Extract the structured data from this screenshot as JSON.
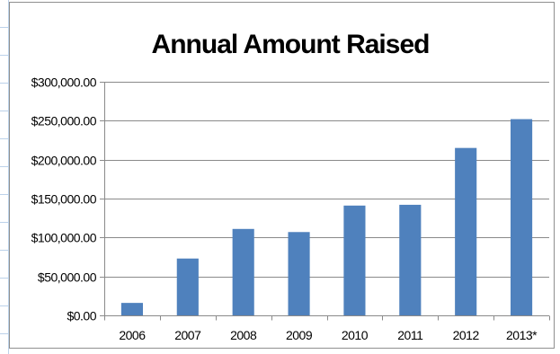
{
  "chart_data": {
    "type": "bar",
    "title": "Annual Amount Raised",
    "xlabel": "",
    "ylabel": "",
    "categories": [
      "2006",
      "2007",
      "2008",
      "2009",
      "2010",
      "2011",
      "2012",
      "2013*"
    ],
    "values": [
      16000,
      73000,
      111000,
      107000,
      141000,
      142000,
      215000,
      252000
    ],
    "ylim": [
      0,
      300000
    ],
    "yticks": [
      0,
      50000,
      100000,
      150000,
      200000,
      250000,
      300000
    ],
    "ytick_labels": [
      "$0.00",
      "$50,000.00",
      "$100,000.00",
      "$150,000.00",
      "$200,000.00",
      "$250,000.00",
      "$300,000.00"
    ],
    "grid": true,
    "legend": "none",
    "bar_color": "#4f81bd"
  }
}
